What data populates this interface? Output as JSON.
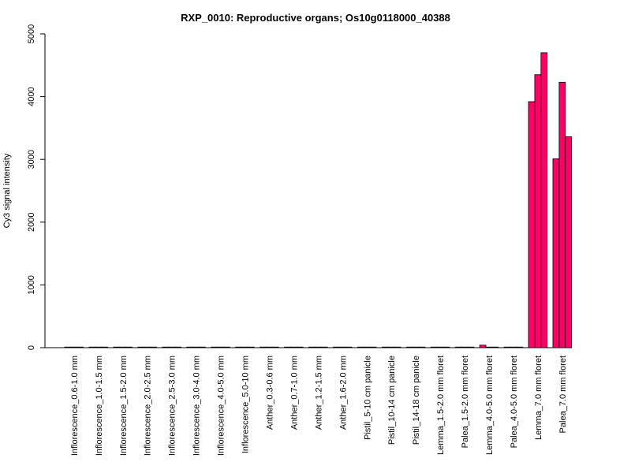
{
  "chart_data": {
    "type": "bar",
    "title": "RXP_0010: Reproductive organs; Os10g0118000_40388",
    "xlabel": "",
    "ylabel": "Cy3 signal intensity",
    "ylim": [
      0,
      5000
    ],
    "yticks": [
      0,
      1000,
      2000,
      3000,
      4000,
      5000
    ],
    "bar_color": "#FF0066",
    "grid": false,
    "categories": [
      "Inflorescence_0.6-1.0 mm",
      "Inflorescence_1.0-1.5 mm",
      "Inflorescence_1.5-2.0 mm",
      "Inflorescence_2.0-2.5 mm",
      "Inflorescence_2.5-3.0 mm",
      "Inflorescence_3.0-4.0 mm",
      "Inflorescence_4.0-5.0 mm",
      "Inflorescence_5.0-10 mm",
      "Anther_0.3-0.6 mm",
      "Anther_0.7-1.0 mm",
      "Anther_1.2-1.5 mm",
      "Anther_1.6-2.0 mm",
      "Pistil_5-10 cm panicle",
      "Pistil_10-14 cm panicle",
      "Pistil_14-18 cm panicle",
      "Lemma_1.5-2.0 mm floret",
      "Palea_1.5-2.0 mm floret",
      "Lemma_4.0-5.0 mm floret",
      "Palea_4.0-5.0 mm floret",
      "Lemma_7.0 mm floret",
      "Palea_7.0 mm floret"
    ],
    "values": [
      [
        8,
        4,
        3
      ],
      [
        8,
        5,
        3
      ],
      [
        5,
        4,
        3
      ],
      [
        4,
        3,
        3
      ],
      [
        10,
        6,
        4
      ],
      [
        5,
        4,
        3
      ],
      [
        4,
        3,
        3
      ],
      [
        10,
        5,
        4
      ],
      [
        3,
        3,
        3
      ],
      [
        3,
        2,
        2
      ],
      [
        3,
        2,
        2
      ],
      [
        3,
        2,
        2
      ],
      [
        3,
        2,
        2
      ],
      [
        3,
        2,
        2
      ],
      [
        3,
        2,
        2
      ],
      [
        5,
        4,
        3
      ],
      [
        5,
        4,
        3
      ],
      [
        40,
        6,
        4
      ],
      [
        10,
        5,
        4
      ],
      [
        3920,
        4350,
        4700
      ],
      [
        3010,
        4230,
        3360
      ]
    ]
  }
}
